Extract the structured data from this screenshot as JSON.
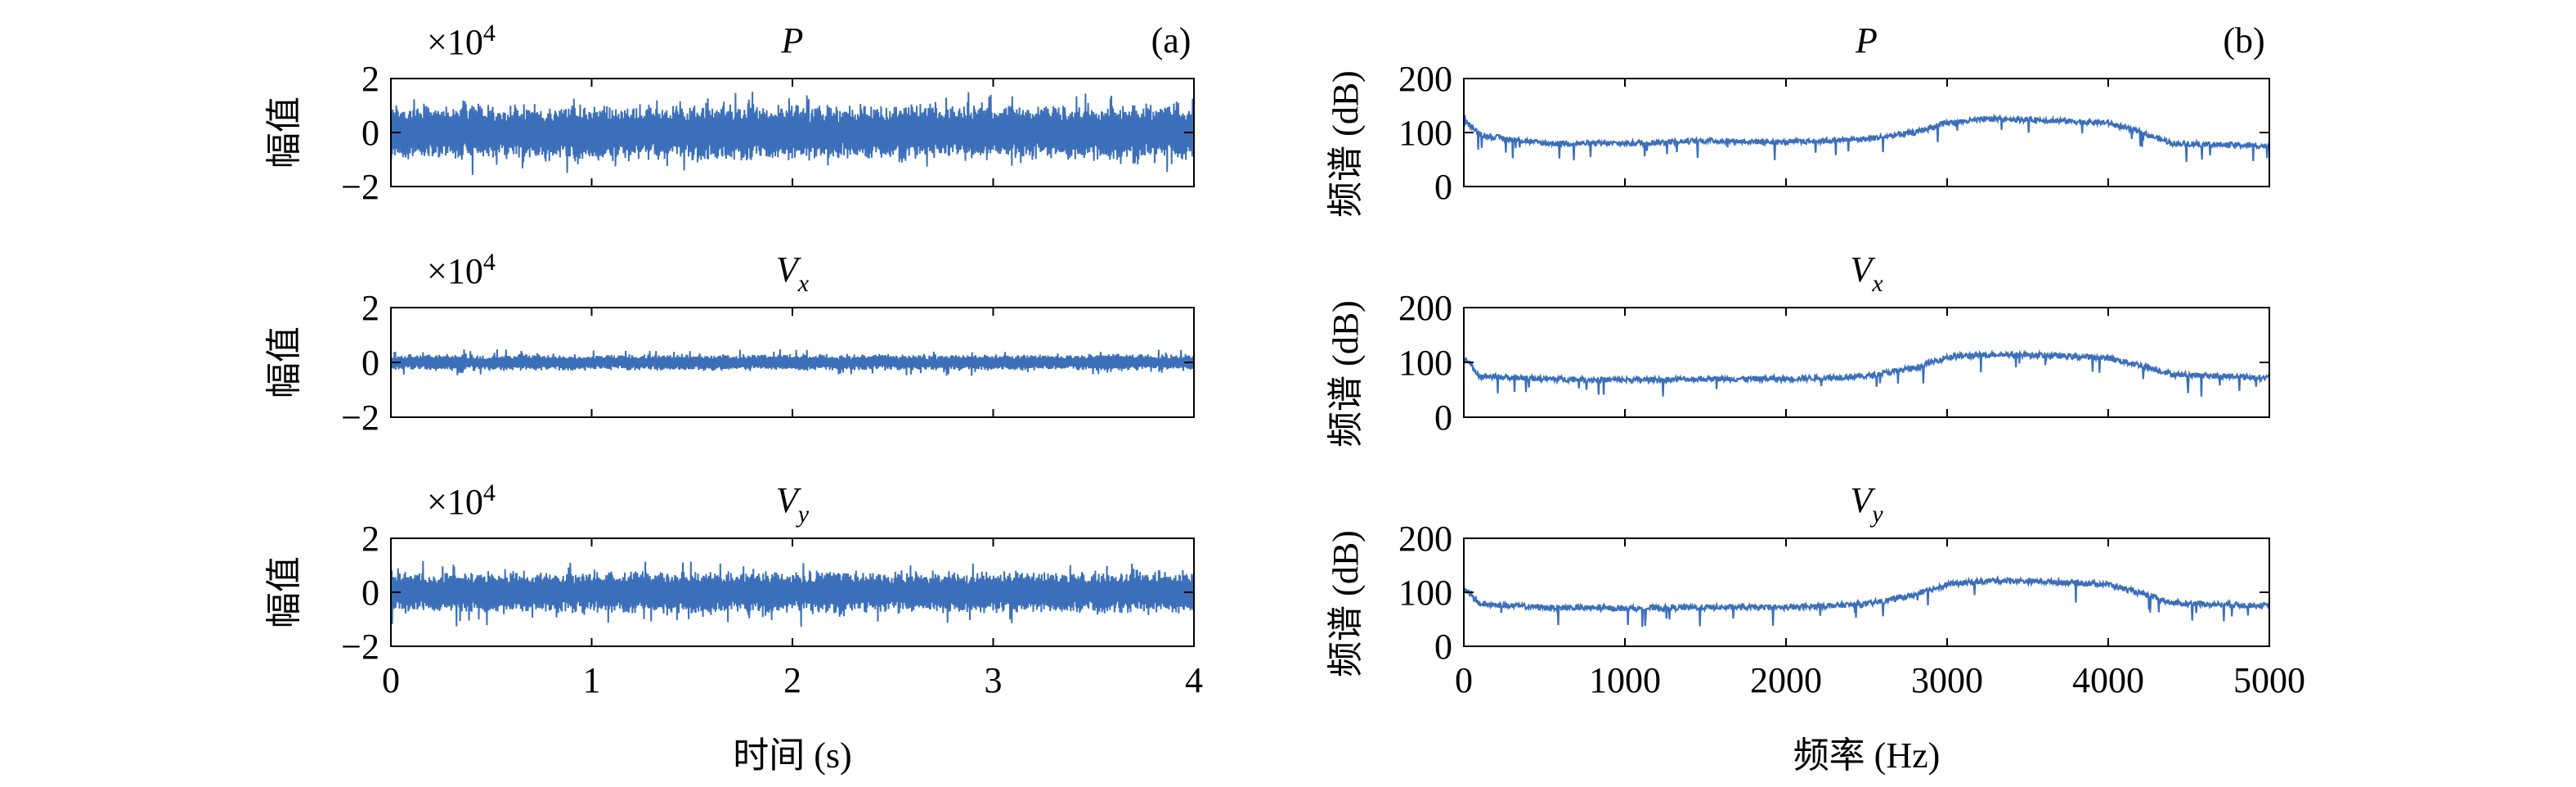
{
  "chart_data": [
    {
      "type": "line",
      "panel": "(a)",
      "domain": "time",
      "xlabel": "时间 (s)",
      "xlim": [
        0,
        4
      ],
      "xticks": [
        "0",
        "1",
        "2",
        "3",
        "4"
      ],
      "ylim": [
        -20000,
        20000
      ],
      "yticks": [
        "2",
        "0",
        "−2"
      ],
      "scale_label_base": "×10",
      "scale_label_exp": "4",
      "line_color": "#3b6fba",
      "subplots": [
        {
          "title": "P",
          "subscript": "",
          "ylabel": "幅值",
          "y_max_abs": 16000,
          "y_typ_abs": 11000
        },
        {
          "title": "V",
          "subscript": "x",
          "ylabel": "幅值",
          "y_max_abs": 5000,
          "y_typ_abs": 3200
        },
        {
          "title": "V",
          "subscript": "y",
          "ylabel": "幅值",
          "y_max_abs": 13000,
          "y_typ_abs": 8500
        }
      ]
    },
    {
      "type": "line",
      "panel": "(b)",
      "domain": "frequency",
      "xlabel": "频率 (Hz)",
      "xlim": [
        0,
        5000
      ],
      "xticks": [
        "0",
        "1000",
        "2000",
        "3000",
        "4000",
        "5000"
      ],
      "ylim": [
        0,
        200
      ],
      "yticks": [
        "200",
        "100",
        "0"
      ],
      "line_color": "#3b6fba",
      "subplots": [
        {
          "title": "P",
          "subscript": "",
          "ylabel": "频谱 (dB)",
          "envelope": [
            [
              0,
              125
            ],
            [
              100,
              95
            ],
            [
              500,
              80
            ],
            [
              1000,
              80
            ],
            [
              1500,
              85
            ],
            [
              2000,
              82
            ],
            [
              2500,
              88
            ],
            [
              2800,
              100
            ],
            [
              3000,
              118
            ],
            [
              3300,
              126
            ],
            [
              3600,
              123
            ],
            [
              4000,
              118
            ],
            [
              4200,
              100
            ],
            [
              4400,
              80
            ],
            [
              5000,
              75
            ]
          ]
        },
        {
          "title": "V",
          "subscript": "x",
          "ylabel": "频谱 (dB)",
          "envelope": [
            [
              0,
              110
            ],
            [
              100,
              75
            ],
            [
              500,
              70
            ],
            [
              1000,
              68
            ],
            [
              1500,
              70
            ],
            [
              2000,
              70
            ],
            [
              2500,
              75
            ],
            [
              2800,
              90
            ],
            [
              3000,
              110
            ],
            [
              3300,
              115
            ],
            [
              3600,
              113
            ],
            [
              4000,
              108
            ],
            [
              4200,
              95
            ],
            [
              4400,
              78
            ],
            [
              5000,
              72
            ]
          ]
        },
        {
          "title": "V",
          "subscript": "y",
          "ylabel": "频谱 (dB)",
          "envelope": [
            [
              0,
              108
            ],
            [
              100,
              78
            ],
            [
              500,
              72
            ],
            [
              1000,
              70
            ],
            [
              1500,
              72
            ],
            [
              2000,
              72
            ],
            [
              2500,
              78
            ],
            [
              2800,
              95
            ],
            [
              3000,
              115
            ],
            [
              3300,
              122
            ],
            [
              3600,
              120
            ],
            [
              4000,
              115
            ],
            [
              4200,
              98
            ],
            [
              4400,
              80
            ],
            [
              5000,
              75
            ]
          ]
        }
      ]
    }
  ]
}
